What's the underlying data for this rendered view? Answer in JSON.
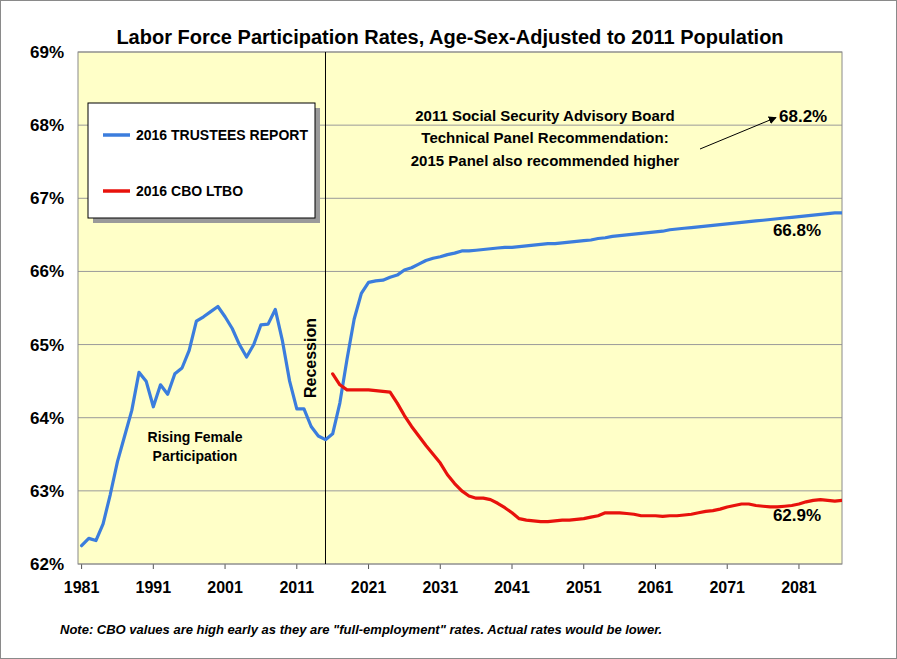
{
  "chart_data": {
    "type": "line",
    "title": "Labor Force Participation Rates, Age-Sex-Adjusted to 2011 Population",
    "x": [
      1981,
      1982,
      1983,
      1984,
      1985,
      1986,
      1987,
      1988,
      1989,
      1990,
      1991,
      1992,
      1993,
      1994,
      1995,
      1996,
      1997,
      1998,
      1999,
      2000,
      2001,
      2002,
      2003,
      2004,
      2005,
      2006,
      2007,
      2008,
      2009,
      2010,
      2011,
      2012,
      2013,
      2014,
      2015,
      2016,
      2017,
      2018,
      2019,
      2020,
      2021,
      2022,
      2023,
      2024,
      2025,
      2026,
      2027,
      2028,
      2029,
      2030,
      2031,
      2032,
      2033,
      2034,
      2035,
      2036,
      2037,
      2038,
      2039,
      2040,
      2041,
      2042,
      2043,
      2044,
      2045,
      2046,
      2047,
      2048,
      2049,
      2050,
      2051,
      2052,
      2053,
      2054,
      2055,
      2056,
      2057,
      2058,
      2059,
      2060,
      2061,
      2062,
      2063,
      2064,
      2065,
      2066,
      2067,
      2068,
      2069,
      2070,
      2071,
      2072,
      2073,
      2074,
      2075,
      2076,
      2077,
      2078,
      2079,
      2080,
      2081,
      2082,
      2083,
      2084,
      2085,
      2086,
      2087
    ],
    "series": [
      {
        "name": "2016 TRUSTEES REPORT",
        "color": "#3b7ddd",
        "values": [
          62.25,
          62.35,
          62.32,
          62.55,
          62.95,
          63.4,
          63.75,
          64.1,
          64.62,
          64.5,
          64.15,
          64.45,
          64.32,
          64.6,
          64.68,
          64.92,
          65.32,
          65.38,
          65.45,
          65.52,
          65.38,
          65.22,
          65.0,
          64.83,
          65.0,
          65.27,
          65.28,
          65.48,
          65.05,
          64.5,
          64.12,
          64.12,
          63.88,
          63.75,
          63.7,
          63.78,
          64.2,
          64.8,
          65.35,
          65.7,
          65.85,
          65.87,
          65.88,
          65.92,
          65.95,
          66.02,
          66.05,
          66.1,
          66.15,
          66.18,
          66.2,
          66.23,
          66.25,
          66.28,
          66.28,
          66.29,
          66.3,
          66.31,
          66.32,
          66.33,
          66.33,
          66.34,
          66.35,
          66.36,
          66.37,
          66.38,
          66.38,
          66.39,
          66.4,
          66.41,
          66.42,
          66.43,
          66.45,
          66.46,
          66.48,
          66.49,
          66.5,
          66.51,
          66.52,
          66.53,
          66.54,
          66.55,
          66.57,
          66.58,
          66.59,
          66.6,
          66.61,
          66.62,
          66.63,
          66.64,
          66.65,
          66.66,
          66.67,
          66.68,
          66.69,
          66.7,
          66.71,
          66.72,
          66.73,
          66.74,
          66.75,
          66.76,
          66.77,
          66.78,
          66.79,
          66.8,
          66.8
        ]
      },
      {
        "name": "2016 CBO LTBO",
        "color": "#e8120c",
        "values": [
          null,
          null,
          null,
          null,
          null,
          null,
          null,
          null,
          null,
          null,
          null,
          null,
          null,
          null,
          null,
          null,
          null,
          null,
          null,
          null,
          null,
          null,
          null,
          null,
          null,
          null,
          null,
          null,
          null,
          null,
          null,
          null,
          null,
          null,
          null,
          64.6,
          64.45,
          64.38,
          64.38,
          64.38,
          64.38,
          64.37,
          64.36,
          64.35,
          64.2,
          64.03,
          63.88,
          63.75,
          63.62,
          63.5,
          63.38,
          63.22,
          63.1,
          63.0,
          62.93,
          62.9,
          62.9,
          62.88,
          62.83,
          62.77,
          62.7,
          62.62,
          62.6,
          62.59,
          62.58,
          62.58,
          62.59,
          62.6,
          62.6,
          62.61,
          62.62,
          62.64,
          62.66,
          62.7,
          62.7,
          62.7,
          62.69,
          62.68,
          62.66,
          62.66,
          62.66,
          62.65,
          62.66,
          62.66,
          62.67,
          62.68,
          62.7,
          62.72,
          62.73,
          62.75,
          62.78,
          62.8,
          62.82,
          62.82,
          62.8,
          62.79,
          62.78,
          62.78,
          62.79,
          62.8,
          62.82,
          62.85,
          62.87,
          62.88,
          62.87,
          62.86,
          62.87
        ]
      }
    ],
    "xlim": [
      1980.5,
      2087
    ],
    "xticks": [
      1981,
      1991,
      2001,
      2011,
      2021,
      2031,
      2041,
      2051,
      2061,
      2071,
      2081
    ],
    "ylim": [
      62,
      69
    ],
    "yticks": [
      {
        "value": 62,
        "label": "62%"
      },
      {
        "value": 63,
        "label": "63%"
      },
      {
        "value": 64,
        "label": "64%"
      },
      {
        "value": 65,
        "label": "65%"
      },
      {
        "value": 66,
        "label": "66%"
      },
      {
        "value": 67,
        "label": "67%"
      },
      {
        "value": 68,
        "label": "68%"
      },
      {
        "value": 69,
        "label": "69%"
      }
    ],
    "grid": true,
    "legend": "upper left",
    "annotations": [
      {
        "text": "Recession",
        "x": 2015
      },
      {
        "lines": [
          "Rising Female",
          "Participation"
        ]
      },
      {
        "lines": [
          "2011 Social Security Advisory Board",
          "Technical Panel Recommendation:",
          "2015 Panel also recommended higher"
        ],
        "value": 68.2,
        "label": "68.2%"
      },
      {
        "value": 66.8,
        "label": "66.8%"
      },
      {
        "value": 62.9,
        "label": "62.9%"
      }
    ],
    "note": "Note: CBO values are high early as they are \"full-employment\" rates.  Actual rates would be lower."
  }
}
